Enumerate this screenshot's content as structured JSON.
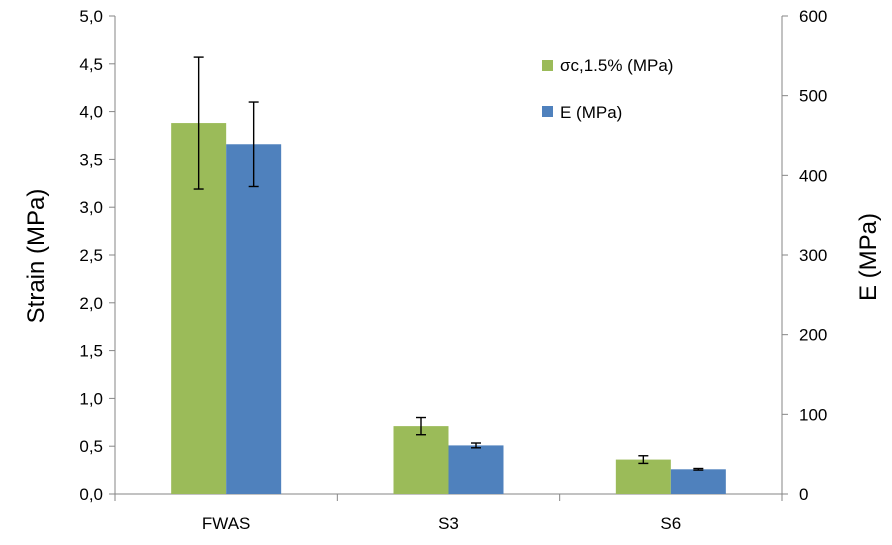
{
  "chart_data": {
    "type": "bar",
    "categories": [
      "FWAS",
      "S3",
      "S6"
    ],
    "series": [
      {
        "name": "σc,1.5% (MPa)",
        "axis": "left",
        "color": "#9BBB59",
        "values": [
          3.88,
          0.71,
          0.36
        ],
        "errors": [
          0.69,
          0.09,
          0.04
        ]
      },
      {
        "name": "E (MPa)",
        "axis": "right",
        "color": "#4F81BD",
        "values": [
          439,
          61,
          31
        ],
        "errors": [
          53,
          3,
          1
        ]
      }
    ],
    "ylabel": "Strain (MPa)",
    "ylabel_right": "E (MPa)",
    "ylim": [
      0,
      5
    ],
    "ylim_right": [
      0,
      600
    ],
    "yticks": [
      "0,0",
      "0,5",
      "1,0",
      "1,5",
      "2,0",
      "2,5",
      "3,0",
      "3,5",
      "4,0",
      "4,5",
      "5,0"
    ],
    "yticks_right": [
      "0",
      "100",
      "200",
      "300",
      "400",
      "500",
      "600"
    ],
    "grid": false,
    "legend_position": "top-right"
  }
}
